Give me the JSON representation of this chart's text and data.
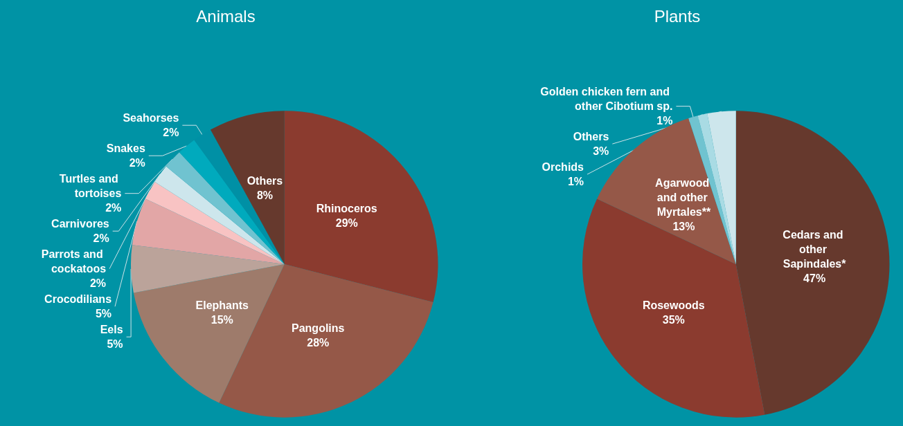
{
  "chart_data": [
    {
      "type": "pie",
      "title": "Animals",
      "categories": [
        "Rhinoceros",
        "Pangolins",
        "Elephants",
        "Eels",
        "Crocodilians",
        "Parrots and cockatoos",
        "Carnivores",
        "Turtles and tortoises",
        "Snakes",
        "Seahorses",
        "Others"
      ],
      "values": [
        29,
        28,
        15,
        5,
        5,
        2,
        2,
        2,
        2,
        2,
        8
      ],
      "value_labels": [
        "29%",
        "28%",
        "15%",
        "5%",
        "5%",
        "2%",
        "2%",
        "2%",
        "2%",
        "2%",
        "8%"
      ],
      "colors": [
        "#8b3b2f",
        "#955848",
        "#9e7b6b",
        "#bba39a",
        "#e2a6a6",
        "#f8c3c3",
        "#cde6ec",
        "#70c3d0",
        "#00aabd",
        "#0090a5",
        "#66392d"
      ]
    },
    {
      "type": "pie",
      "title": "Plants",
      "categories": [
        "Cedars and other Sapindales*",
        "Rosewoods",
        "Agarwood and other Myrtales**",
        "Golden chicken fern and other Cibotium sp.",
        "Orchids",
        "Others"
      ],
      "values": [
        47,
        35,
        13,
        1,
        1,
        3
      ],
      "value_labels": [
        "47%",
        "35%",
        "13%",
        "1%",
        "1%",
        "3%"
      ],
      "colors": [
        "#66392d",
        "#8b3b2f",
        "#955848",
        "#70c3d0",
        "#a9dbe4",
        "#cde6ec"
      ]
    }
  ]
}
